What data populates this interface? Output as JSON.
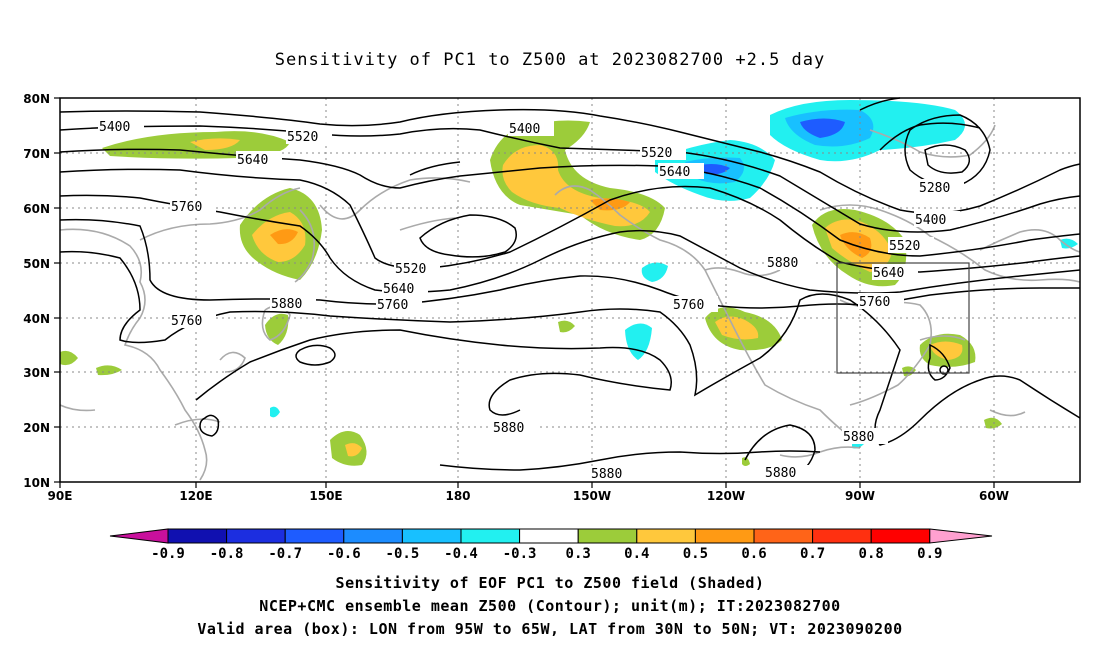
{
  "title": "Sensitivity of PC1 to Z500 at 2023082700 +2.5 day",
  "map": {
    "lat_labels": [
      "80N",
      "70N",
      "60N",
      "50N",
      "40N",
      "30N",
      "20N",
      "10N"
    ],
    "lon_labels": [
      "90E",
      "120E",
      "150E",
      "180",
      "150W",
      "120W",
      "90W",
      "60W"
    ],
    "contour_labels": [
      "5400",
      "5520",
      "5640",
      "5400",
      "5520",
      "5640",
      "5760",
      "5280",
      "5400",
      "5520",
      "5640",
      "5760",
      "5880",
      "5520",
      "5640",
      "5760",
      "5760",
      "5880",
      "5760",
      "5880",
      "5880",
      "5880",
      "5880"
    ],
    "box_region": "LON 95W-65W, LAT 30N-50N"
  },
  "colorbar": {
    "labels": [
      "-0.9",
      "-0.8",
      "-0.7",
      "-0.6",
      "-0.5",
      "-0.4",
      "-0.3",
      "0.3",
      "0.4",
      "0.5",
      "0.6",
      "0.7",
      "0.8",
      "0.9"
    ],
    "colors": [
      "#c8109c",
      "#1010b0",
      "#1c2ee0",
      "#1e5cff",
      "#1c8cff",
      "#18c0ff",
      "#22f0f0",
      "#ffffff",
      "#9ccc3a",
      "#ffc83c",
      "#ff9a14",
      "#ff6418",
      "#ff3010",
      "#ff0000",
      "#ffa0d0"
    ]
  },
  "captions": [
    "Sensitivity of EOF PC1 to Z500 field (Shaded)",
    "NCEP+CMC ensemble mean Z500 (Contour); unit(m); IT:2023082700",
    "Valid area (box): LON from 95W to 65W, LAT from 30N to 50N; VT: 2023090200"
  ]
}
